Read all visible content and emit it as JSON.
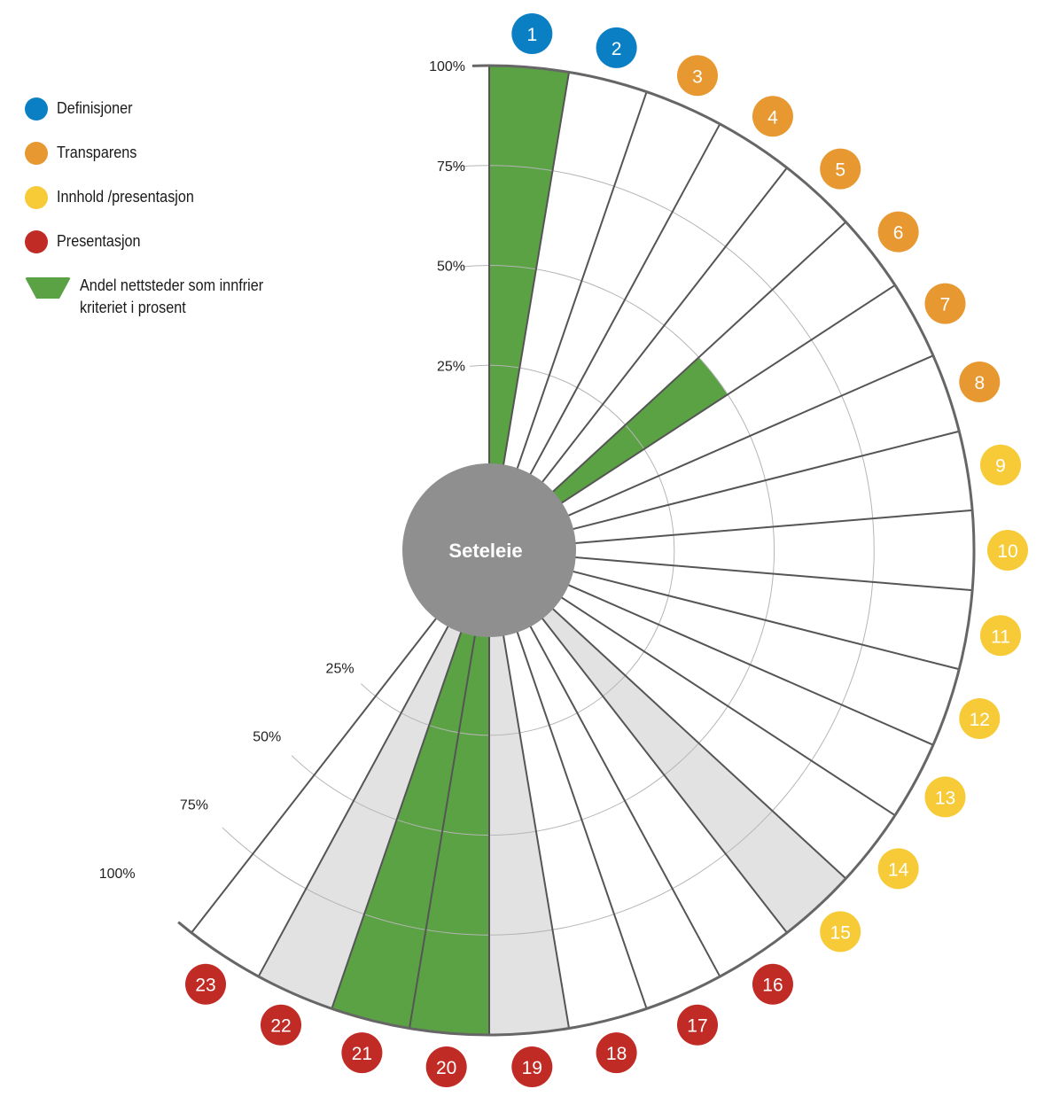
{
  "chart_data": {
    "type": "polar-bar",
    "title": "Seteleie",
    "center_label": "Seteleie",
    "radial_axis": {
      "ticks": [
        "25%",
        "50%",
        "75%",
        "100%"
      ],
      "range": [
        0,
        100
      ]
    },
    "legend": [
      {
        "label": "Definisjoner",
        "color": "#0a7fc4",
        "shape": "circle"
      },
      {
        "label": "Transparens",
        "color": "#e89830",
        "shape": "circle"
      },
      {
        "label": "Innhold /presentasjon",
        "color": "#f6cb37",
        "shape": "circle"
      },
      {
        "label": "Presentasjon",
        "color": "#c02b25",
        "shape": "circle"
      },
      {
        "label": "Andel nettsteder som innfrier\nkriteriet i prosent",
        "color": "#5ba245",
        "shape": "wedge"
      }
    ],
    "categories": [
      "1",
      "2",
      "3",
      "4",
      "5",
      "6",
      "7",
      "8",
      "9",
      "10",
      "11",
      "12",
      "13",
      "14",
      "15",
      "16",
      "17",
      "18",
      "19",
      "20",
      "21",
      "22",
      "23"
    ],
    "groups": [
      "Definisjoner",
      "Definisjoner",
      "Transparens",
      "Transparens",
      "Transparens",
      "Transparens",
      "Transparens",
      "Transparens",
      "Innhold /presentasjon",
      "Innhold /presentasjon",
      "Innhold /presentasjon",
      "Innhold /presentasjon",
      "Innhold /presentasjon",
      "Innhold /presentasjon",
      "Innhold /presentasjon",
      "Presentasjon",
      "Presentasjon",
      "Presentasjon",
      "Presentasjon",
      "Presentasjon",
      "Presentasjon",
      "Presentasjon",
      "Presentasjon"
    ],
    "values": [
      100,
      0,
      0,
      0,
      0,
      50,
      0,
      0,
      0,
      0,
      0,
      0,
      0,
      0,
      null,
      0,
      0,
      0,
      null,
      100,
      100,
      null,
      0
    ],
    "not_applicable": [
      15,
      19,
      22
    ],
    "colors": {
      "fill": "#5ba245",
      "not_applicable": "#e2e2e2",
      "hub": "#8f8f8f",
      "grid": "#b5b5b5",
      "spoke": "#555555"
    }
  },
  "legend_items": [
    {
      "label": "Definisjoner"
    },
    {
      "label": "Transparens"
    },
    {
      "label": "Innhold /presentasjon"
    },
    {
      "label": "Presentasjon"
    },
    {
      "label": "Andel nettsteder som innfrier\nkriteriet i prosent"
    }
  ]
}
